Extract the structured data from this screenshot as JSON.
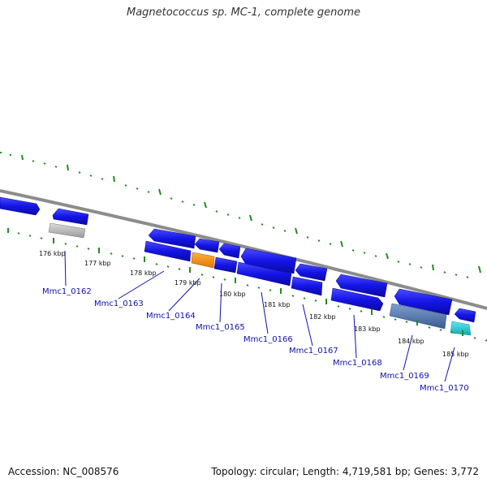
{
  "title": "Magnetococcus sp. MC-1, complete genome",
  "footer": {
    "accession": "Accession: NC_008576",
    "summary": "Topology: circular; Length: 4,719,581 bp; Genes: 3,772"
  },
  "kbp_labels": [
    "176 kbp",
    "177 kbp",
    "178 kbp",
    "179 kbp",
    "180 kbp",
    "181 kbp",
    "182 kbp",
    "183 kbp",
    "184 kbp",
    "185 kbp"
  ],
  "gene_labels": [
    "Mmc1_0162",
    "Mmc1_0163",
    "Mmc1_0164",
    "Mmc1_0165",
    "Mmc1_0166",
    "Mmc1_0167",
    "Mmc1_0168",
    "Mmc1_0169",
    "Mmc1_0170"
  ],
  "colors": {
    "backbone": "#8c8c8c",
    "gene_blue": "#1414e6",
    "gene_orange": "#f08c14",
    "gene_gray": "#b4b4b4",
    "gene_steel": "#5078b4",
    "gene_cyan": "#28c8d2",
    "tick_green": "#1e8c1e",
    "label_blue": "#1010aa"
  }
}
